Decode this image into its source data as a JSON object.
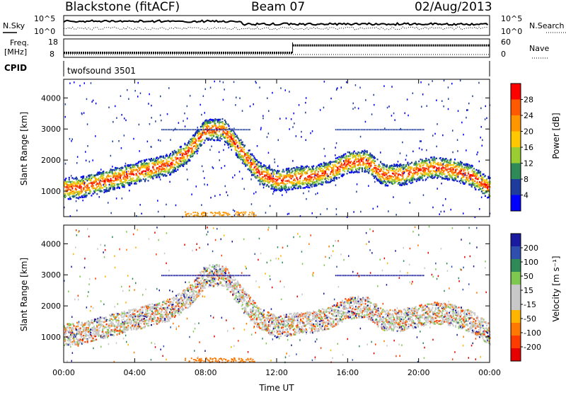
{
  "header": {
    "station": "Blackstone (fitACF)",
    "beam": "Beam 07",
    "date": "02/Aug/2013"
  },
  "sky_panel": {
    "left_label": "N.Sky",
    "right_label": "N.Search",
    "tick_top": "10^5",
    "tick_bottom": "10^0"
  },
  "freq_panel": {
    "left_label_1": "Freq.",
    "left_label_2": "[MHz]",
    "left_tick_top": "18",
    "left_tick_bottom": "8",
    "right_label": "Nave",
    "right_tick_top": "60",
    "right_tick_bottom": "0"
  },
  "cpid_panel": {
    "label": "CPID",
    "value": "twofsound 3501"
  },
  "power_panel": {
    "ylabel": "Slant Range [km]",
    "colorbar_label": "Power [dB]",
    "colorbar_ticks": [
      "28",
      "24",
      "20",
      "16",
      "12",
      "8",
      "4"
    ],
    "colorbar_colors": [
      "#ff0000",
      "#ff5a00",
      "#ff9600",
      "#ffc800",
      "#9acd32",
      "#2e8b57",
      "#1e3c9c",
      "#0000ff"
    ]
  },
  "velocity_panel": {
    "ylabel": "Slant Range [km]",
    "colorbar_label": "Velocity [m s⁻¹]",
    "colorbar_ticks": [
      "200",
      "100",
      "50",
      "15",
      "-15",
      "-50",
      "-100",
      "-200"
    ],
    "colorbar_colors": [
      "#1a1aa0",
      "#2e4fae",
      "#2e8b57",
      "#7ec850",
      "#c8c8c8",
      "#c8c8c8",
      "#ffb400",
      "#ff7800",
      "#ff3c00",
      "#e60000"
    ]
  },
  "xaxis": {
    "label": "Time UT",
    "ticks": [
      "00:00",
      "04:00",
      "08:00",
      "12:00",
      "16:00",
      "20:00",
      "00:00"
    ]
  },
  "chart_data": {
    "type": "heatmap",
    "title": "Blackstone (fitACF) Beam 07 02/Aug/2013",
    "xlabel": "Time UT",
    "ylabel": "Slant Range [km]",
    "x_range_hours": [
      0,
      24
    ],
    "y_range_km": [
      180,
      4600
    ],
    "yticks_km": [
      1000,
      2000,
      3000,
      4000
    ],
    "frequency_mhz": [
      {
        "from_hour": 0,
        "to_hour": 12.9,
        "value": 10.5
      },
      {
        "from_hour": 12.9,
        "to_hour": 24,
        "value": 14.5
      }
    ],
    "scatter_band_km": [
      {
        "hour": 0,
        "range": 1100
      },
      {
        "hour": 1,
        "range": 1150
      },
      {
        "hour": 2,
        "range": 1300
      },
      {
        "hour": 3,
        "range": 1450
      },
      {
        "hour": 4,
        "range": 1600
      },
      {
        "hour": 5,
        "range": 1750
      },
      {
        "hour": 6,
        "range": 1900
      },
      {
        "hour": 7,
        "range": 2300
      },
      {
        "hour": 8,
        "range": 3000
      },
      {
        "hour": 9,
        "range": 3000
      },
      {
        "hour": 10,
        "range": 2300
      },
      {
        "hour": 11,
        "range": 1600
      },
      {
        "hour": 12,
        "range": 1350
      },
      {
        "hour": 13,
        "range": 1450
      },
      {
        "hour": 14,
        "range": 1500
      },
      {
        "hour": 15,
        "range": 1650
      },
      {
        "hour": 16,
        "range": 1950
      },
      {
        "hour": 17,
        "range": 2000
      },
      {
        "hour": 18,
        "range": 1550
      },
      {
        "hour": 19,
        "range": 1550
      },
      {
        "hour": 20,
        "range": 1700
      },
      {
        "hour": 21,
        "range": 1800
      },
      {
        "hour": 22,
        "range": 1700
      },
      {
        "hour": 23,
        "range": 1500
      },
      {
        "hour": 24,
        "range": 1100
      }
    ],
    "power_range_db": [
      0,
      30
    ],
    "velocity_range_ms": [
      -200,
      200
    ]
  }
}
